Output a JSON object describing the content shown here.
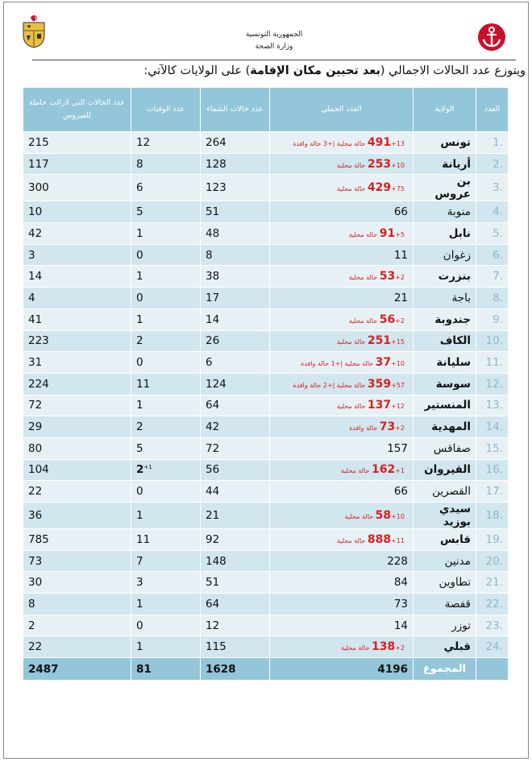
{
  "header": {
    "line1": "الجمهورية التونسية",
    "line2": "وزارة الصحة"
  },
  "intro": {
    "before": "ويتوزع عدد الحالات الاجمالي (",
    "bold": "بعد تحيين مكان الإقامة",
    "after": ") على الولايات كالآتي:"
  },
  "table": {
    "headers": {
      "num": "العدد",
      "gov": "الولاية",
      "total": "العدد الجملي",
      "recovered": "عدد حالات الشفاء",
      "deaths": "عدد الوفيات",
      "active": "عدد الحالات التي لازالت حاملة للفيروس"
    },
    "rows": [
      {
        "num": ".1",
        "gov": "تونس",
        "bold": true,
        "total": "491",
        "red": true,
        "note": "+13 حالة محلية |+3 حالة وافدة",
        "rec": "264",
        "deaths": "12",
        "dnote": "",
        "active": "215"
      },
      {
        "num": ".2",
        "gov": "أريانة",
        "bold": true,
        "total": "253",
        "red": true,
        "note": "+10 حالة محلية",
        "rec": "128",
        "deaths": "8",
        "dnote": "",
        "active": "117"
      },
      {
        "num": ".3",
        "gov": "بن عروس",
        "bold": true,
        "total": "429",
        "red": true,
        "note": "+75 حالة محلية",
        "rec": "123",
        "deaths": "6",
        "dnote": "",
        "active": "300"
      },
      {
        "num": ".4",
        "gov": "منوبة",
        "bold": false,
        "total": "66",
        "red": false,
        "note": "",
        "rec": "51",
        "deaths": "5",
        "dnote": "",
        "active": "10"
      },
      {
        "num": ".5",
        "gov": "نابل",
        "bold": true,
        "total": "91",
        "red": true,
        "note": "+5 حالة محلية",
        "rec": "48",
        "deaths": "1",
        "dnote": "",
        "active": "42"
      },
      {
        "num": ".6",
        "gov": "زغوان",
        "bold": false,
        "total": "11",
        "red": false,
        "note": "",
        "rec": "8",
        "deaths": "0",
        "dnote": "",
        "active": "3"
      },
      {
        "num": ".7",
        "gov": "بنزرت",
        "bold": true,
        "total": "53",
        "red": true,
        "note": "+2 حالة محلية",
        "rec": "38",
        "deaths": "1",
        "dnote": "",
        "active": "14"
      },
      {
        "num": ".8",
        "gov": "باجة",
        "bold": false,
        "total": "21",
        "red": false,
        "note": "",
        "rec": "17",
        "deaths": "0",
        "dnote": "",
        "active": "4"
      },
      {
        "num": ".9",
        "gov": "جندوبة",
        "bold": true,
        "total": "56",
        "red": true,
        "note": "+2 حالة محلية",
        "rec": "14",
        "deaths": "1",
        "dnote": "",
        "active": "41"
      },
      {
        "num": ".10",
        "gov": "الكاف",
        "bold": true,
        "total": "251",
        "red": true,
        "note": "+15 حالة محلية",
        "rec": "26",
        "deaths": "2",
        "dnote": "",
        "active": "223"
      },
      {
        "num": ".11",
        "gov": "سليانة",
        "bold": true,
        "total": "37",
        "red": true,
        "note": "+10 حالة محلية |+1 حالة وافدة",
        "rec": "6",
        "deaths": "0",
        "dnote": "",
        "active": "31"
      },
      {
        "num": ".12",
        "gov": "سوسة",
        "bold": true,
        "total": "359",
        "red": true,
        "note": "+57 حالة محلية |+2 حالة وافدة",
        "rec": "124",
        "deaths": "11",
        "dnote": "",
        "active": "224"
      },
      {
        "num": ".13",
        "gov": "المنستير",
        "bold": true,
        "total": "137",
        "red": true,
        "note": "+12 حالة محلية",
        "rec": "64",
        "deaths": "1",
        "dnote": "",
        "active": "72"
      },
      {
        "num": ".14",
        "gov": "المهدية",
        "bold": true,
        "total": "73",
        "red": true,
        "note": "+2 حالة وافدة",
        "rec": "42",
        "deaths": "2",
        "dnote": "",
        "active": "29"
      },
      {
        "num": ".15",
        "gov": "صفاقس",
        "bold": false,
        "total": "157",
        "red": false,
        "note": "",
        "rec": "72",
        "deaths": "5",
        "dnote": "",
        "active": "80"
      },
      {
        "num": ".16",
        "gov": "القيروان",
        "bold": true,
        "total": "162",
        "red": true,
        "note": "+1 حالة محلية",
        "rec": "56",
        "deaths": "2",
        "dnote": "+1",
        "active": "104"
      },
      {
        "num": ".17",
        "gov": "القصرين",
        "bold": false,
        "total": "66",
        "red": false,
        "note": "",
        "rec": "44",
        "deaths": "0",
        "dnote": "",
        "active": "22"
      },
      {
        "num": ".18",
        "gov": "سيدي بوزيد",
        "bold": true,
        "total": "58",
        "red": true,
        "note": "+10 حالة محلية",
        "rec": "21",
        "deaths": "1",
        "dnote": "",
        "active": "36"
      },
      {
        "num": ".19",
        "gov": "قابس",
        "bold": true,
        "total": "888",
        "red": true,
        "note": "+11 حالة محلية",
        "rec": "92",
        "deaths": "11",
        "dnote": "",
        "active": "785"
      },
      {
        "num": ".20",
        "gov": "مدنين",
        "bold": false,
        "total": "228",
        "red": false,
        "note": "",
        "rec": "148",
        "deaths": "7",
        "dnote": "",
        "active": "73"
      },
      {
        "num": ".21",
        "gov": "تطاوين",
        "bold": false,
        "total": "84",
        "red": false,
        "note": "",
        "rec": "51",
        "deaths": "3",
        "dnote": "",
        "active": "30"
      },
      {
        "num": ".22",
        "gov": "قفصة",
        "bold": false,
        "total": "73",
        "red": false,
        "note": "",
        "rec": "64",
        "deaths": "1",
        "dnote": "",
        "active": "8"
      },
      {
        "num": ".23",
        "gov": "توزر",
        "bold": false,
        "total": "14",
        "red": false,
        "note": "",
        "rec": "12",
        "deaths": "0",
        "dnote": "",
        "active": "2"
      },
      {
        "num": ".24",
        "gov": "قبلي",
        "bold": true,
        "total": "138",
        "red": true,
        "note": "+2 حالة محلية",
        "rec": "115",
        "deaths": "1",
        "dnote": "",
        "active": "22"
      }
    ],
    "sum": {
      "label": "المجموع",
      "total": "4196",
      "rec": "1628",
      "deaths": "81",
      "active": "2487"
    }
  },
  "colors": {
    "header_bg": "#93c6d8",
    "row_light": "#e7f1f5",
    "row_dark": "#d1e6ee",
    "red": "#d82020"
  }
}
